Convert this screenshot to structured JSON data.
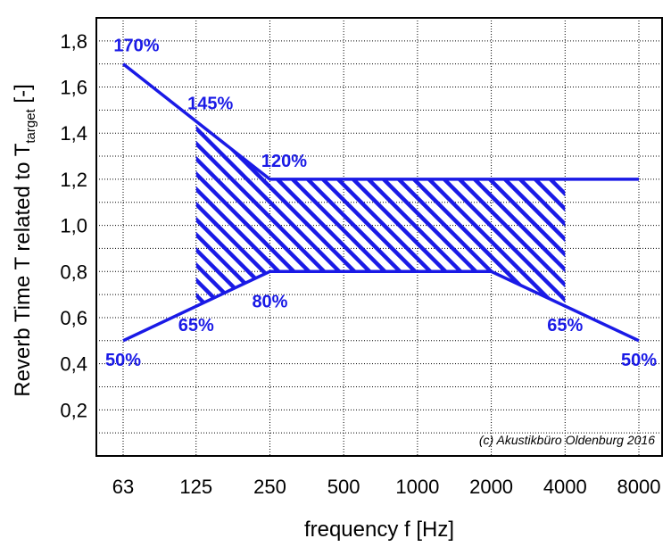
{
  "chart_data": {
    "type": "line",
    "x_tick_labels": [
      "63",
      "125",
      "250",
      "500",
      "1000",
      "2000",
      "4000",
      "8000"
    ],
    "x_values": [
      63,
      125,
      250,
      500,
      1000,
      2000,
      4000,
      8000
    ],
    "xscale": "log",
    "xlabel": "frequency f [Hz]",
    "ylabel_main": "Reverb Time T related to T",
    "ylabel_sub": "target",
    "ylabel_suffix": " [-]",
    "y_tick_labels": [
      "0,2",
      "0,4",
      "0,6",
      "0,8",
      "1,0",
      "1,2",
      "1,4",
      "1,6",
      "1,8"
    ],
    "y_ticks": [
      0.2,
      0.4,
      0.6,
      0.8,
      1.0,
      1.2,
      1.4,
      1.6,
      1.8
    ],
    "ylim": [
      0.0,
      1.9
    ],
    "grid": true,
    "series": [
      {
        "x": [
          63,
          250,
          8000
        ],
        "y": [
          1.7,
          1.2,
          1.2
        ]
      },
      {
        "x": [
          63,
          250,
          2000,
          8000
        ],
        "y": [
          0.5,
          0.8,
          0.8,
          0.5
        ]
      }
    ],
    "hatched_region": {
      "x_range": [
        125,
        4000
      ],
      "upper": {
        "x": [
          125,
          250,
          4000
        ],
        "y": [
          1.45,
          1.2,
          1.2
        ]
      },
      "lower": {
        "x": [
          125,
          250,
          2000,
          4000
        ],
        "y": [
          0.65,
          0.8,
          0.8,
          0.65
        ]
      }
    },
    "annotations": [
      {
        "text": "170%",
        "x": 63,
        "y": 1.7,
        "anchor": "above"
      },
      {
        "text": "145%",
        "x": 125,
        "y": 1.45,
        "anchor": "above"
      },
      {
        "text": "120%",
        "x": 250,
        "y": 1.2,
        "anchor": "above"
      },
      {
        "text": "80%",
        "x": 250,
        "y": 0.8,
        "anchor": "below"
      },
      {
        "text": "65%",
        "x": 125,
        "y": 0.65,
        "anchor": "below"
      },
      {
        "text": "65%",
        "x": 4000,
        "y": 0.65,
        "anchor": "below"
      },
      {
        "text": "50%",
        "x": 63,
        "y": 0.5,
        "anchor": "below"
      },
      {
        "text": "50%",
        "x": 8000,
        "y": 0.5,
        "anchor": "below"
      }
    ],
    "copyright": "(c) Akustikbüro Oldenburg 2016",
    "colors": {
      "series": "#1a1ae6",
      "grid": "#000000",
      "frame": "#000000"
    }
  }
}
